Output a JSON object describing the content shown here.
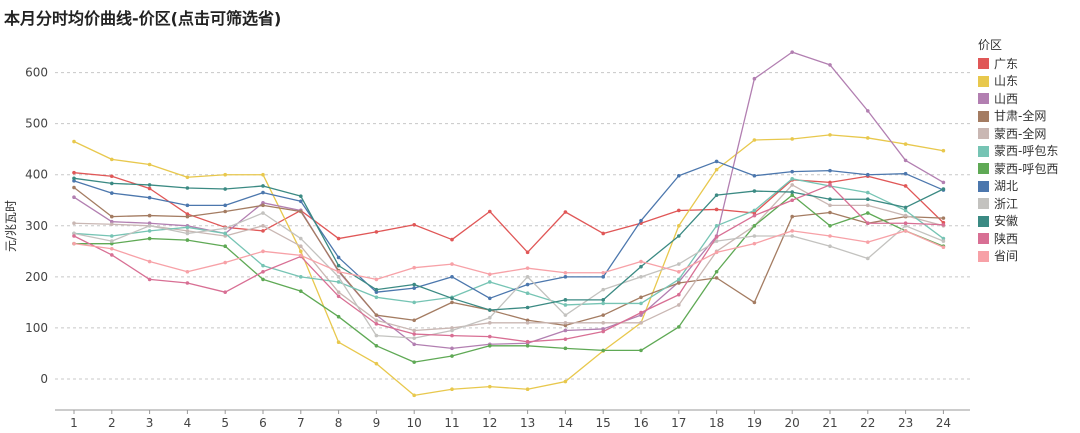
{
  "title": "本月分时均价曲线-价区(点击可筛选省)",
  "chart_data": {
    "type": "line",
    "x": [
      1,
      2,
      3,
      4,
      5,
      6,
      7,
      8,
      9,
      10,
      11,
      12,
      13,
      14,
      15,
      16,
      17,
      18,
      19,
      20,
      21,
      22,
      23,
      24
    ],
    "xlabel": "",
    "ylabel": "元/兆瓦时",
    "ylim": [
      -50,
      650
    ],
    "yticks": [
      0,
      100,
      200,
      300,
      400,
      500,
      600
    ],
    "grid": true,
    "legend_title": "价区",
    "legend_position": "right",
    "series": [
      {
        "name": "广东",
        "color": "#e05757",
        "values": [
          404,
          397,
          373,
          323,
          297,
          290,
          330,
          275,
          288,
          302,
          273,
          328,
          248,
          327,
          285,
          305,
          330,
          332,
          325,
          390,
          385,
          397,
          378,
          306
        ]
      },
      {
        "name": "山东",
        "color": "#e8c84d",
        "values": [
          465,
          430,
          420,
          395,
          400,
          400,
          250,
          72,
          30,
          -32,
          -20,
          -15,
          -20,
          -5,
          55,
          110,
          300,
          410,
          468,
          470,
          478,
          472,
          460,
          447
        ]
      },
      {
        "name": "山西",
        "color": "#b27fb1",
        "values": [
          356,
          308,
          305,
          300,
          285,
          345,
          330,
          210,
          125,
          68,
          60,
          68,
          70,
          95,
          98,
          125,
          190,
          280,
          588,
          640,
          615,
          525,
          428,
          385
        ]
      },
      {
        "name": "甘肃-全网",
        "color": "#a47c62",
        "values": [
          375,
          318,
          320,
          318,
          328,
          340,
          328,
          212,
          125,
          115,
          150,
          135,
          115,
          105,
          125,
          160,
          188,
          198,
          150,
          318,
          326,
          305,
          318,
          315
        ]
      },
      {
        "name": "蒙西-全网",
        "color": "#c9b7b3",
        "values": [
          305,
          303,
          300,
          290,
          280,
          300,
          260,
          170,
          115,
          95,
          100,
          110,
          110,
          110,
          110,
          110,
          145,
          250,
          300,
          380,
          340,
          340,
          320,
          300
        ]
      },
      {
        "name": "蒙西-呼包东",
        "color": "#76c4b4",
        "values": [
          285,
          280,
          290,
          297,
          285,
          222,
          200,
          190,
          160,
          150,
          160,
          190,
          168,
          145,
          148,
          148,
          195,
          300,
          330,
          392,
          378,
          365,
          330,
          275
        ]
      },
      {
        "name": "蒙西-呼包西",
        "color": "#5fa955",
        "values": [
          265,
          265,
          275,
          272,
          260,
          195,
          172,
          122,
          65,
          33,
          45,
          65,
          65,
          60,
          56,
          56,
          102,
          210,
          300,
          360,
          300,
          325,
          290,
          260
        ]
      },
      {
        "name": "湖北",
        "color": "#4c77ad",
        "values": [
          388,
          364,
          355,
          340,
          340,
          365,
          348,
          238,
          170,
          178,
          200,
          158,
          185,
          200,
          200,
          310,
          398,
          426,
          398,
          406,
          408,
          400,
          402,
          370
        ]
      },
      {
        "name": "浙江",
        "color": "#c3c2bf",
        "values": [
          285,
          270,
          300,
          285,
          295,
          325,
          275,
          200,
          85,
          80,
          95,
          120,
          200,
          125,
          175,
          200,
          225,
          270,
          280,
          280,
          260,
          236,
          300,
          270
        ]
      },
      {
        "name": "安徽",
        "color": "#3b8a83",
        "values": [
          393,
          383,
          380,
          374,
          372,
          378,
          358,
          222,
          175,
          185,
          158,
          135,
          140,
          155,
          155,
          220,
          280,
          360,
          368,
          366,
          352,
          352,
          336,
          372
        ]
      },
      {
        "name": "陕西",
        "color": "#d86f94",
        "values": [
          280,
          243,
          195,
          188,
          170,
          210,
          240,
          162,
          108,
          88,
          85,
          83,
          73,
          78,
          93,
          130,
          165,
          278,
          320,
          350,
          380,
          305,
          305,
          302
        ]
      },
      {
        "name": "省间",
        "color": "#f7a1a7",
        "values": [
          265,
          255,
          230,
          210,
          228,
          250,
          242,
          210,
          195,
          218,
          225,
          205,
          217,
          208,
          208,
          230,
          210,
          248,
          265,
          290,
          280,
          268,
          290,
          258
        ]
      }
    ]
  }
}
